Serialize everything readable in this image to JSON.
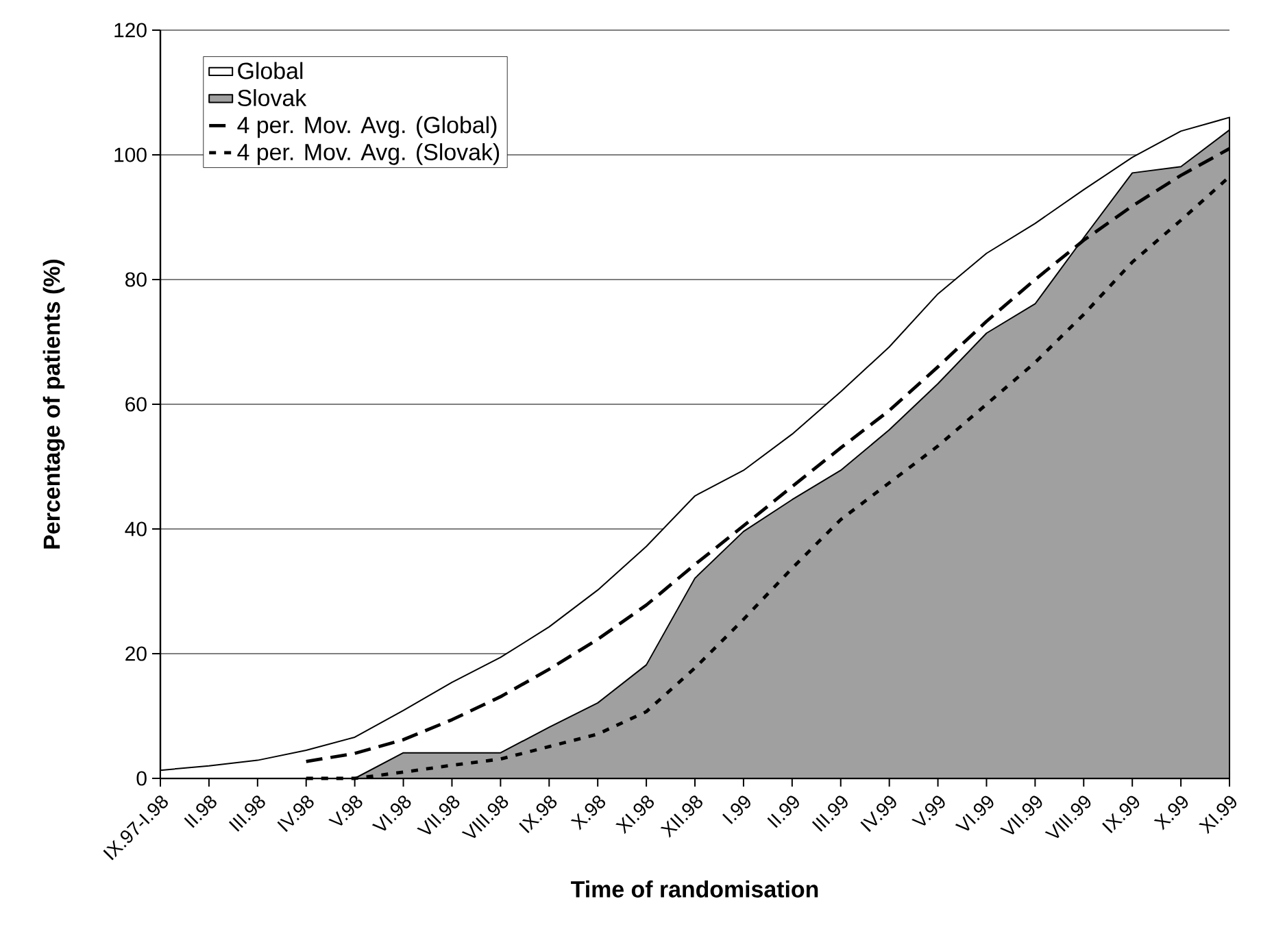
{
  "chart_data": {
    "type": "area",
    "xlabel": "Time of randomisation",
    "ylabel": "Percentage of patients (%)",
    "categories": [
      "IX.97-I.98",
      "II.98",
      "III.98",
      "IV.98",
      "V.98",
      "VI.98",
      "VII.98",
      "VIII.98",
      "IX.98",
      "X.98",
      "XI.98",
      "XII.98",
      "I.99",
      "II.99",
      "III.99",
      "IV.99",
      "V.99",
      "VI.99",
      "VII.99",
      "VIII.99",
      "IX.99",
      "X.99",
      "XI.99"
    ],
    "ylim": [
      0,
      120
    ],
    "yticks": [
      0,
      20,
      40,
      60,
      80,
      100,
      120
    ],
    "grid": "y",
    "legend": "top left",
    "series": [
      {
        "name": "Global",
        "color": "#ffffff",
        "values": [
          1.3,
          2.0,
          2.9,
          4.5,
          6.6,
          10.9,
          15.4,
          19.4,
          24.3,
          30.2,
          37.2,
          45.3,
          49.4,
          55.2,
          62.0,
          69.2,
          77.7,
          84.2,
          89.0,
          94.4,
          99.6,
          103.8,
          106
        ]
      },
      {
        "name": "Slovak",
        "color": "#a0a0a0",
        "values": [
          0,
          0,
          0,
          0,
          0,
          4.1,
          4.1,
          4.1,
          8.2,
          12.1,
          18.2,
          32.1,
          39.6,
          44.7,
          49.4,
          55.9,
          63.3,
          71.4,
          76.1,
          86.7,
          97.1,
          98.1,
          104
        ]
      },
      {
        "name": "4 per. Mov. Avg. (Global)",
        "type": "line",
        "line_style": "dashed",
        "color": "#000000",
        "values": [
          null,
          null,
          null,
          2.7,
          4.0,
          6.2,
          9.4,
          13.1,
          17.5,
          22.3,
          27.8,
          34.3,
          40.5,
          46.8,
          53.0,
          59.0,
          66.0,
          73.3,
          80.0,
          86.3,
          91.8,
          96.7,
          101.0
        ]
      },
      {
        "name": "4 per. Mov. Avg. (Slovak)",
        "type": "line",
        "line_style": "dotted",
        "color": "#000000",
        "values": [
          null,
          null,
          null,
          0,
          0,
          1.0,
          2.1,
          3.1,
          5.1,
          7.1,
          10.7,
          17.7,
          25.5,
          33.7,
          41.5,
          47.4,
          53.3,
          60.0,
          66.7,
          74.4,
          82.8,
          89.5,
          96.5
        ]
      }
    ]
  }
}
